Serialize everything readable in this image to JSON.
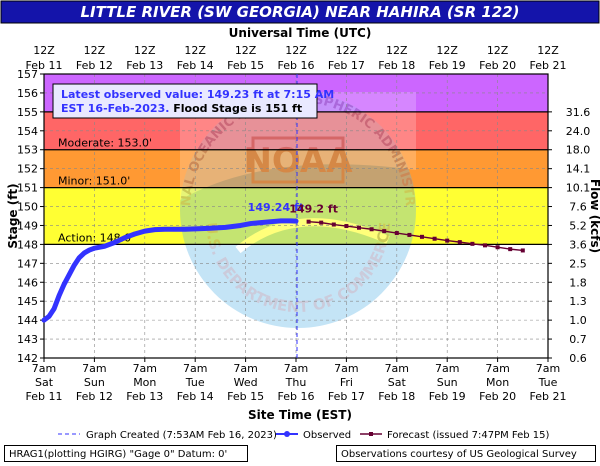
{
  "title": "LITTLE RIVER (SW GEORGIA) NEAR HAHIRA (SR 122)",
  "top_axis_title": "Universal Time (UTC)",
  "bottom_axis_title": "Site Time (EST)",
  "left_axis_title": "Stage (ft)",
  "right_axis_title": "Flow (kcfs)",
  "info_box": {
    "line1": "Latest observed value: 149.23 ft at 7:15 AM",
    "line2a": "EST 16-Feb-2023. ",
    "line2b": "Flood Stage is 151 ft"
  },
  "legend": {
    "graph_created": "Graph Created (7:53AM Feb 16, 2023)",
    "observed": "Observed",
    "forecast": "Forecast (issued 7:47PM Feb 15)"
  },
  "footer": {
    "gage_info": "HRAG1(plotting HGIRG) \"Gage 0\" Datum: 0'",
    "credit": "Observations courtesy of US Geological Survey"
  },
  "watermark_text": [
    "NATIONAL OCEANIC AND ATMOSPHERIC ADMINISTRATION",
    "U.S. DEPARTMENT OF COMMERCE",
    "NOAA"
  ],
  "colors": {
    "title_bg": "#1414aa",
    "title_text": "#ffffff",
    "major_band": "#cc66ff",
    "moderate_band": "#ff6666",
    "minor_band": "#ff9933",
    "action_band": "#ffff33",
    "normal_band": "#ffffff",
    "observed": "#3333ff",
    "forecast": "#660033",
    "info_text": "#3333ff"
  },
  "chart_data": {
    "type": "line",
    "ylim": [
      142,
      157
    ],
    "yticks": [
      142,
      143,
      144,
      145,
      146,
      147,
      148,
      149,
      150,
      151,
      152,
      153,
      154,
      155,
      156,
      157
    ],
    "flow_ticks": [
      {
        "stage": 142,
        "label": "0.6"
      },
      {
        "stage": 143,
        "label": "0.7"
      },
      {
        "stage": 144,
        "label": "1.0"
      },
      {
        "stage": 145,
        "label": "1.3"
      },
      {
        "stage": 146,
        "label": "1.8"
      },
      {
        "stage": 147,
        "label": "2.5"
      },
      {
        "stage": 148,
        "label": "3.6"
      },
      {
        "stage": 149,
        "label": "5.2"
      },
      {
        "stage": 150,
        "label": "7.6"
      },
      {
        "stage": 151,
        "label": "10.1"
      },
      {
        "stage": 152,
        "label": "14.1"
      },
      {
        "stage": 153,
        "label": "18.0"
      },
      {
        "stage": 154,
        "label": "24.0"
      },
      {
        "stage": 155,
        "label": "31.6"
      }
    ],
    "x_unit": "days from Feb 11 7am EST",
    "xlim": [
      0,
      10
    ],
    "bottom_ticks": [
      {
        "x": 0,
        "l1": "7am",
        "l2": "Sat",
        "l3": "Feb 11"
      },
      {
        "x": 1,
        "l1": "7am",
        "l2": "Sun",
        "l3": "Feb 12"
      },
      {
        "x": 2,
        "l1": "7am",
        "l2": "Mon",
        "l3": "Feb 13"
      },
      {
        "x": 3,
        "l1": "7am",
        "l2": "Tue",
        "l3": "Feb 14"
      },
      {
        "x": 4,
        "l1": "7am",
        "l2": "Wed",
        "l3": "Feb 15"
      },
      {
        "x": 5,
        "l1": "7am",
        "l2": "Thu",
        "l3": "Feb 16"
      },
      {
        "x": 6,
        "l1": "7am",
        "l2": "Fri",
        "l3": "Feb 17"
      },
      {
        "x": 7,
        "l1": "7am",
        "l2": "Sat",
        "l3": "Feb 18"
      },
      {
        "x": 8,
        "l1": "7am",
        "l2": "Sun",
        "l3": "Feb 19"
      },
      {
        "x": 9,
        "l1": "7am",
        "l2": "Mon",
        "l3": "Feb 20"
      },
      {
        "x": 10,
        "l1": "7am",
        "l2": "Tue",
        "l3": "Feb 21"
      }
    ],
    "top_ticks": [
      {
        "x": 0,
        "l1": "12Z",
        "l2": "Feb 11"
      },
      {
        "x": 1,
        "l1": "12Z",
        "l2": "Feb 12"
      },
      {
        "x": 2,
        "l1": "12Z",
        "l2": "Feb 13"
      },
      {
        "x": 3,
        "l1": "12Z",
        "l2": "Feb 14"
      },
      {
        "x": 4,
        "l1": "12Z",
        "l2": "Feb 15"
      },
      {
        "x": 5,
        "l1": "12Z",
        "l2": "Feb 16"
      },
      {
        "x": 6,
        "l1": "12Z",
        "l2": "Feb 17"
      },
      {
        "x": 7,
        "l1": "12Z",
        "l2": "Feb 18"
      },
      {
        "x": 8,
        "l1": "12Z",
        "l2": "Feb 19"
      },
      {
        "x": 9,
        "l1": "12Z",
        "l2": "Feb 20"
      },
      {
        "x": 10,
        "l1": "12Z",
        "l2": "Feb 21"
      }
    ],
    "bands": [
      {
        "name": "Major",
        "from": 155,
        "to": 157,
        "color": "#cc66ff",
        "label": ""
      },
      {
        "name": "Moderate",
        "from": 153,
        "to": 155,
        "color": "#ff6666",
        "label": "Moderate: 153.0'"
      },
      {
        "name": "Minor",
        "from": 151,
        "to": 153,
        "color": "#ff9933",
        "label": "Minor: 151.0'"
      },
      {
        "name": "Action",
        "from": 148,
        "to": 151,
        "color": "#ffff33",
        "label": "Action: 148.0'"
      }
    ],
    "graph_created_x": 5.02,
    "series": [
      {
        "name": "Observed",
        "x": [
          0,
          0.1,
          0.2,
          0.3,
          0.4,
          0.5,
          0.6,
          0.7,
          0.8,
          0.9,
          1.0,
          1.2,
          1.4,
          1.6,
          1.8,
          2.0,
          2.2,
          2.4,
          2.6,
          2.8,
          3.0,
          3.3,
          3.6,
          3.9,
          4.1,
          4.3,
          4.5,
          4.7,
          4.9,
          5.0
        ],
        "values": [
          144.0,
          144.2,
          144.6,
          145.3,
          145.9,
          146.4,
          146.9,
          147.3,
          147.55,
          147.7,
          147.8,
          147.9,
          148.1,
          148.35,
          148.55,
          148.7,
          148.78,
          148.8,
          148.8,
          148.8,
          148.82,
          148.85,
          148.9,
          149.0,
          149.1,
          149.15,
          149.2,
          149.24,
          149.24,
          149.23
        ],
        "label": "149.24 ft"
      },
      {
        "name": "Forecast",
        "x": [
          5.25,
          5.5,
          5.75,
          6.0,
          6.25,
          6.5,
          6.75,
          7.0,
          7.25,
          7.5,
          7.75,
          8.0,
          8.25,
          8.5,
          8.75,
          9.0,
          9.25,
          9.5
        ],
        "values": [
          149.2,
          149.15,
          149.05,
          148.97,
          148.88,
          148.8,
          148.7,
          148.6,
          148.5,
          148.4,
          148.3,
          148.2,
          148.12,
          148.03,
          147.95,
          147.85,
          147.75,
          147.68
        ],
        "label": "149.2 ft"
      }
    ]
  }
}
